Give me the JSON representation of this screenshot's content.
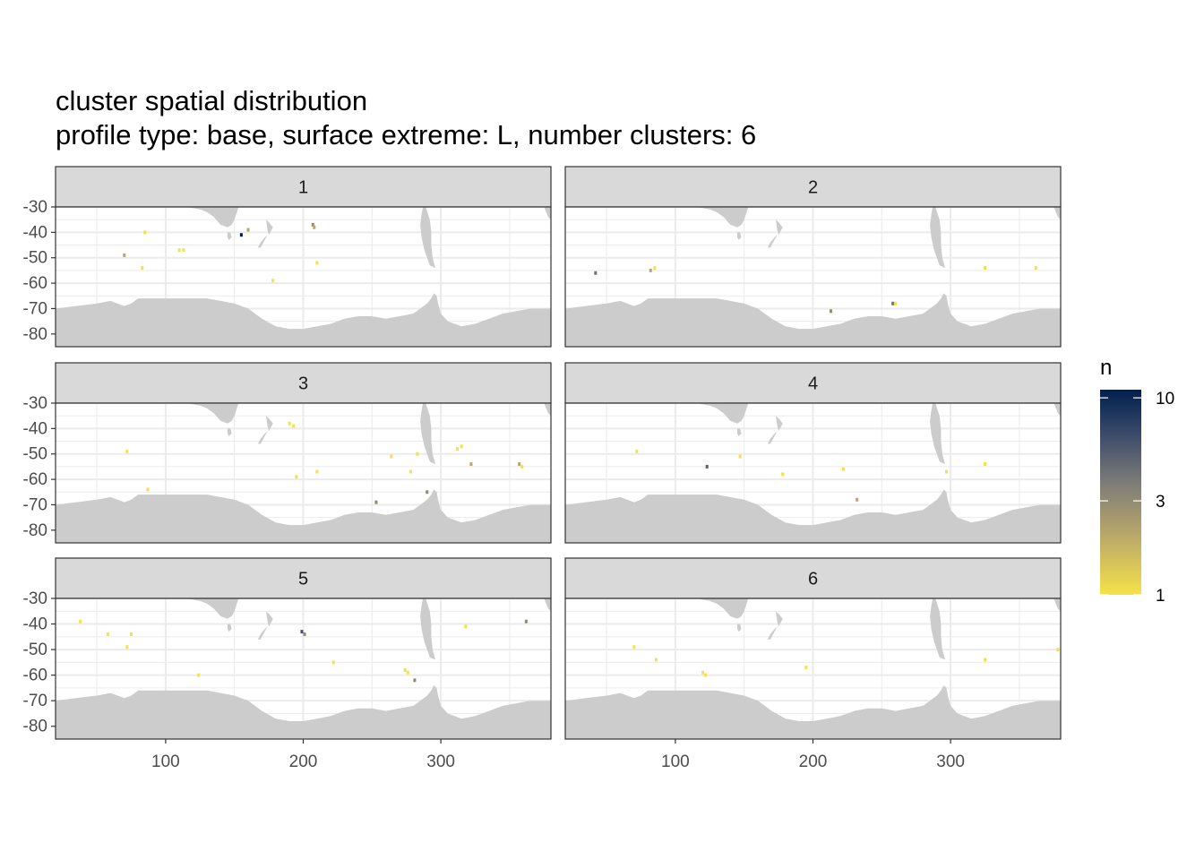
{
  "title": "cluster spatial distribution",
  "subtitle": "profile type: base, surface extreme: L, number clusters: 6",
  "colors": {
    "panel_bg": "#ffffff",
    "grid": "#ebebeb",
    "land": "#cccccc",
    "strip_bg": "#d9d9d9",
    "strip_border": "#333333",
    "panel_border": "#333333",
    "scale_low": "#f5e249",
    "scale_mid": "#7c7b78",
    "scale_high": "#00204d"
  },
  "chart_data": {
    "type": "heatmap",
    "description_of_marks": "binned count of profiles per lon/lat cell",
    "x_ticks": [
      100,
      200,
      300
    ],
    "x_tick_labels": [
      "100",
      "200",
      "300"
    ],
    "y_ticks": [
      -30,
      -40,
      -50,
      -60,
      -70,
      -80
    ],
    "y_tick_labels": [
      "-30",
      "-40",
      "-50",
      "-60",
      "-70",
      "-80"
    ],
    "xlim": [
      20,
      380
    ],
    "ylim": [
      -85,
      -30
    ],
    "legend": {
      "title": "n",
      "scale": "log",
      "range": [
        1,
        11
      ],
      "ticks": [
        1,
        3,
        10
      ],
      "tick_labels": [
        "1",
        "3",
        "10"
      ],
      "placement": "right"
    },
    "panels": [
      {
        "label": "1",
        "points": [
          {
            "lon": 155,
            "lat": -41,
            "n": 11
          },
          {
            "lon": 207,
            "lat": -37,
            "n": 3
          },
          {
            "lon": 208,
            "lat": -38,
            "n": 2
          },
          {
            "lon": 160,
            "lat": -39,
            "n": 2
          },
          {
            "lon": 85,
            "lat": -40,
            "n": 1
          },
          {
            "lon": 110,
            "lat": -47,
            "n": 1
          },
          {
            "lon": 113,
            "lat": -47,
            "n": 1
          },
          {
            "lon": 70,
            "lat": -49,
            "n": 2
          },
          {
            "lon": 210,
            "lat": -52,
            "n": 1
          },
          {
            "lon": 83,
            "lat": -54,
            "n": 1
          },
          {
            "lon": 178,
            "lat": -59,
            "n": 1
          }
        ]
      },
      {
        "label": "2",
        "points": [
          {
            "lon": 42,
            "lat": -56,
            "n": 4
          },
          {
            "lon": 82,
            "lat": -55,
            "n": 2
          },
          {
            "lon": 85,
            "lat": -54,
            "n": 1
          },
          {
            "lon": 213,
            "lat": -71,
            "n": 3
          },
          {
            "lon": 258,
            "lat": -68,
            "n": 4
          },
          {
            "lon": 260,
            "lat": -68,
            "n": 1
          },
          {
            "lon": 325,
            "lat": -54,
            "n": 1
          },
          {
            "lon": 362,
            "lat": -54,
            "n": 1
          }
        ]
      },
      {
        "label": "3",
        "points": [
          {
            "lon": 190,
            "lat": -38,
            "n": 1
          },
          {
            "lon": 193,
            "lat": -39,
            "n": 1
          },
          {
            "lon": 72,
            "lat": -49,
            "n": 1
          },
          {
            "lon": 264,
            "lat": -51,
            "n": 1
          },
          {
            "lon": 283,
            "lat": -50,
            "n": 1
          },
          {
            "lon": 312,
            "lat": -48,
            "n": 1
          },
          {
            "lon": 315,
            "lat": -47,
            "n": 1
          },
          {
            "lon": 322,
            "lat": -54,
            "n": 2
          },
          {
            "lon": 357,
            "lat": -54,
            "n": 2
          },
          {
            "lon": 359,
            "lat": -55,
            "n": 1
          },
          {
            "lon": 278,
            "lat": -57,
            "n": 1
          },
          {
            "lon": 210,
            "lat": -57,
            "n": 1
          },
          {
            "lon": 195,
            "lat": -59,
            "n": 1
          },
          {
            "lon": 87,
            "lat": -64,
            "n": 1
          },
          {
            "lon": 290,
            "lat": -65,
            "n": 3
          },
          {
            "lon": 253,
            "lat": -69,
            "n": 3
          }
        ]
      },
      {
        "label": "4",
        "points": [
          {
            "lon": 123,
            "lat": -55,
            "n": 5
          },
          {
            "lon": 147,
            "lat": -51,
            "n": 1
          },
          {
            "lon": 72,
            "lat": -49,
            "n": 1
          },
          {
            "lon": 178,
            "lat": -58,
            "n": 1
          },
          {
            "lon": 222,
            "lat": -56,
            "n": 1
          },
          {
            "lon": 325,
            "lat": -54,
            "n": 1
          },
          {
            "lon": 297,
            "lat": -57,
            "n": 1
          },
          {
            "lon": 232,
            "lat": -68,
            "n": 2
          }
        ]
      },
      {
        "label": "5",
        "points": [
          {
            "lon": 199,
            "lat": -43,
            "n": 6
          },
          {
            "lon": 201,
            "lat": -44,
            "n": 3
          },
          {
            "lon": 38,
            "lat": -39,
            "n": 1
          },
          {
            "lon": 58,
            "lat": -44,
            "n": 1
          },
          {
            "lon": 75,
            "lat": -44,
            "n": 1
          },
          {
            "lon": 72,
            "lat": -49,
            "n": 1
          },
          {
            "lon": 318,
            "lat": -41,
            "n": 1
          },
          {
            "lon": 362,
            "lat": -39,
            "n": 3
          },
          {
            "lon": 222,
            "lat": -55,
            "n": 1
          },
          {
            "lon": 274,
            "lat": -58,
            "n": 1
          },
          {
            "lon": 276,
            "lat": -59,
            "n": 1
          },
          {
            "lon": 124,
            "lat": -60,
            "n": 1
          },
          {
            "lon": 281,
            "lat": -62,
            "n": 3
          }
        ]
      },
      {
        "label": "6",
        "points": [
          {
            "lon": 70,
            "lat": -49,
            "n": 1
          },
          {
            "lon": 86,
            "lat": -54,
            "n": 1
          },
          {
            "lon": 120,
            "lat": -59,
            "n": 1
          },
          {
            "lon": 122,
            "lat": -60,
            "n": 1
          },
          {
            "lon": 195,
            "lat": -57,
            "n": 1
          },
          {
            "lon": 325,
            "lat": -54,
            "n": 1
          },
          {
            "lon": 378,
            "lat": -50,
            "n": 1
          }
        ]
      }
    ]
  }
}
